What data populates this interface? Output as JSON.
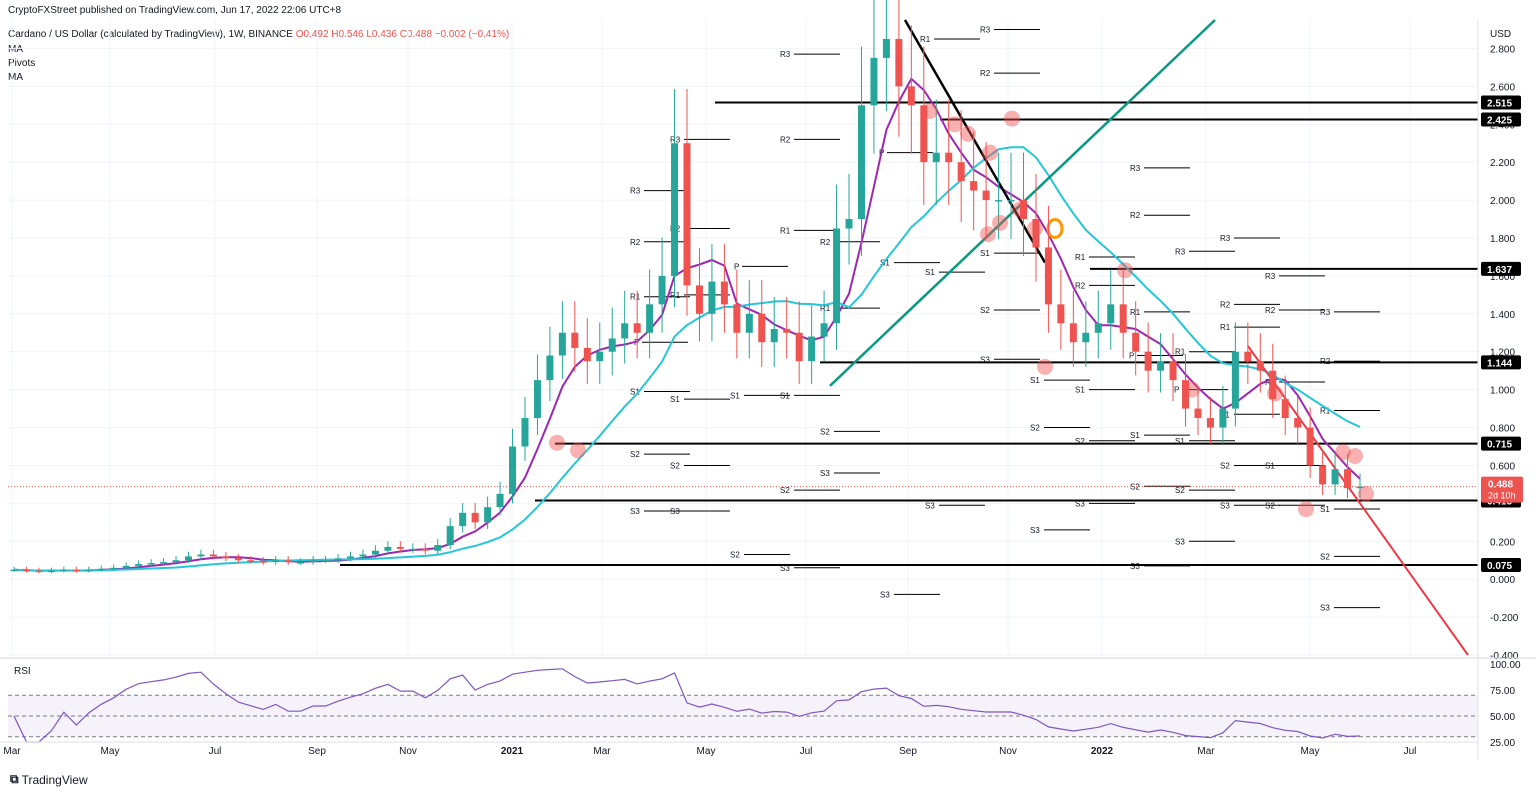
{
  "header": {
    "publisher": "CryptoFXStreet published on TradingView.com, Jun 17, 2022 22:06 UTC+8",
    "symbol": "Cardano / US Dollar (calculated by TradingView), 1W, BINANCE",
    "ohlc": "O0.492  H0.546  L0.436  C0.488  −0.002 (−0.41%)",
    "indicators": [
      "MA",
      "Pivots",
      "MA"
    ]
  },
  "footer": {
    "logo_text": "TradingView",
    "rsi_label": "RSI"
  },
  "colors": {
    "up": "#26a69a",
    "down": "#ef5350",
    "ma_fast": "#9c27b0",
    "ma_slow": "#26c6da",
    "trend_green": "#089981",
    "trend_black": "#000000",
    "trend_red": "#f23645"
  },
  "chart_data": {
    "type": "candlestick",
    "title": "Cardano / US Dollar",
    "currency_label": "USD",
    "x_ticks": [
      "Mar",
      "May",
      "Jul",
      "Sep",
      "Nov",
      "2021",
      "Mar",
      "May",
      "Jul",
      "Sep",
      "Nov",
      "2022",
      "Mar",
      "May",
      "Jul"
    ],
    "y_ticks": [
      "2.800",
      "2.600",
      "2.400",
      "2.200",
      "2.000",
      "1.800",
      "1.600",
      "1.400",
      "1.200",
      "1.000",
      "0.800",
      "0.600",
      "0.400",
      "0.200",
      "0.000",
      "-0.200",
      "-0.400"
    ],
    "ylim": [
      -0.4,
      2.95
    ],
    "horizontal_levels": [
      {
        "label": "2.515",
        "value": 2.515
      },
      {
        "label": "2.425",
        "value": 2.425
      },
      {
        "label": "1.637",
        "value": 1.637
      },
      {
        "label": "1.144",
        "value": 1.144
      },
      {
        "label": "0.715",
        "value": 0.715
      },
      {
        "label": "0.415",
        "value": 0.415
      },
      {
        "label": "0.075",
        "value": 0.075
      }
    ],
    "current_price": {
      "label": "0.488",
      "countdown": "2d 10h",
      "value": 0.488
    },
    "weekly_closes_approx": [
      0.05,
      0.045,
      0.04,
      0.045,
      0.05,
      0.045,
      0.05,
      0.055,
      0.06,
      0.07,
      0.08,
      0.085,
      0.09,
      0.1,
      0.12,
      0.13,
      0.12,
      0.11,
      0.1,
      0.095,
      0.09,
      0.1,
      0.09,
      0.09,
      0.1,
      0.1,
      0.11,
      0.12,
      0.13,
      0.15,
      0.17,
      0.16,
      0.16,
      0.15,
      0.18,
      0.28,
      0.35,
      0.3,
      0.38,
      0.45,
      0.7,
      0.85,
      1.05,
      1.18,
      1.3,
      1.22,
      1.15,
      1.2,
      1.27,
      1.35,
      1.3,
      1.45,
      1.6,
      2.3,
      1.55,
      1.4,
      1.57,
      1.45,
      1.3,
      1.4,
      1.25,
      1.32,
      1.3,
      1.15,
      1.28,
      1.35,
      1.85,
      1.9,
      2.5,
      2.75,
      2.85,
      2.6,
      2.5,
      2.2,
      2.25,
      2.2,
      2.1,
      2.05,
      2.0,
      2.0,
      2.0,
      1.9,
      1.75,
      1.45,
      1.35,
      1.25,
      1.3,
      1.35,
      1.45,
      1.3,
      1.2,
      1.1,
      1.15,
      1.05,
      0.9,
      0.85,
      0.8,
      0.9,
      1.2,
      1.15,
      1.1,
      0.95,
      0.85,
      0.8,
      0.6,
      0.5,
      0.58,
      0.48,
      0.488
    ],
    "rsi": {
      "levels": [
        "100.00",
        "75.00",
        "50.00",
        "25.00"
      ],
      "overbought": 70,
      "oversold": 30,
      "last": 32
    },
    "annotations": [
      "P",
      "R1",
      "R2",
      "R3",
      "S1",
      "S2",
      "S3"
    ]
  }
}
